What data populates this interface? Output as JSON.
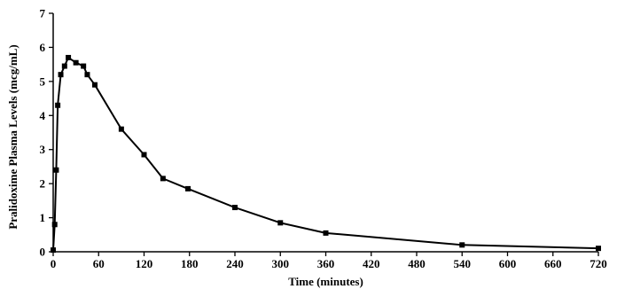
{
  "chart_data": {
    "type": "line",
    "title": "",
    "xlabel": "Time (minutes)",
    "ylabel": "Pralidoxime Plasma Levels (mcg/mL)",
    "xlim": [
      0,
      720
    ],
    "ylim": [
      0,
      7
    ],
    "xticks": [
      0,
      60,
      120,
      180,
      240,
      300,
      360,
      420,
      480,
      540,
      600,
      660,
      720
    ],
    "yticks": [
      0,
      1,
      2,
      3,
      4,
      5,
      6,
      7
    ],
    "grid": false,
    "legend": "none",
    "marker": "square",
    "line_color": "#000000",
    "series": [
      {
        "x": [
          0,
          2,
          4,
          6,
          10,
          15,
          20,
          30,
          40,
          45,
          55,
          90,
          120,
          145,
          178,
          240,
          300,
          360,
          540,
          720
        ],
        "y": [
          0.05,
          0.8,
          2.4,
          4.3,
          5.2,
          5.45,
          5.7,
          5.55,
          5.45,
          5.2,
          4.9,
          3.6,
          2.85,
          2.15,
          1.85,
          1.3,
          0.85,
          0.55,
          0.2,
          0.1
        ]
      }
    ]
  }
}
